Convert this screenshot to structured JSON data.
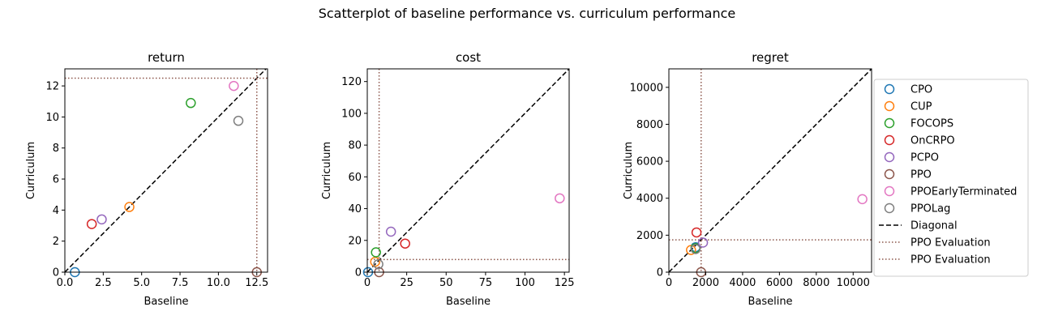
{
  "figure": {
    "suptitle": "Scatterplot of baseline performance vs. curriculum performance"
  },
  "legend": {
    "placement": "right",
    "entries": [
      {
        "label": "CPO",
        "kind": "marker",
        "color": "#1f77b4"
      },
      {
        "label": "CUP",
        "kind": "marker",
        "color": "#ff7f0e"
      },
      {
        "label": "FOCOPS",
        "kind": "marker",
        "color": "#2ca02c"
      },
      {
        "label": "OnCRPO",
        "kind": "marker",
        "color": "#d62728"
      },
      {
        "label": "PCPO",
        "kind": "marker",
        "color": "#9467bd"
      },
      {
        "label": "PPO",
        "kind": "marker",
        "color": "#8c564b"
      },
      {
        "label": "PPOEarlyTerminated",
        "kind": "marker",
        "color": "#e377c2"
      },
      {
        "label": "PPOLag",
        "kind": "marker",
        "color": "#7f7f7f"
      },
      {
        "label": "Diagonal",
        "kind": "dashed",
        "color": "#000000"
      },
      {
        "label": "PPO Evaluation",
        "kind": "dotted",
        "color": "#8c564b"
      },
      {
        "label": "PPO Evaluation",
        "kind": "dotted",
        "color": "#8c564b"
      }
    ]
  },
  "chart_data": [
    {
      "type": "scatter",
      "title": "return",
      "xlabel": "Baseline",
      "ylabel": "Curriculum",
      "xlim": [
        0,
        13.2
      ],
      "ylim": [
        0,
        13.1
      ],
      "xticks": [
        0,
        2.5,
        5,
        7.5,
        10,
        12.5
      ],
      "xtick_labels": [
        "0.0",
        "2.5",
        "5.0",
        "7.5",
        "10.0",
        "12.5"
      ],
      "yticks": [
        0,
        2,
        4,
        6,
        8,
        10,
        12
      ],
      "ytick_labels": [
        "0",
        "2",
        "4",
        "6",
        "8",
        "10",
        "12"
      ],
      "grid": false,
      "diagonal": true,
      "ppo_eval": {
        "x": 12.5,
        "y": 12.5
      },
      "series": [
        {
          "name": "CPO",
          "x": 0.65,
          "y": 0.0
        },
        {
          "name": "CUP",
          "x": 4.2,
          "y": 4.2
        },
        {
          "name": "FOCOPS",
          "x": 8.2,
          "y": 10.9
        },
        {
          "name": "OnCRPO",
          "x": 1.75,
          "y": 3.1
        },
        {
          "name": "PCPO",
          "x": 2.4,
          "y": 3.4
        },
        {
          "name": "PPO",
          "x": 12.5,
          "y": 0.0
        },
        {
          "name": "PPOEarlyTerminated",
          "x": 11.0,
          "y": 12.0
        },
        {
          "name": "PPOLag",
          "x": 11.3,
          "y": 9.75
        }
      ]
    },
    {
      "type": "scatter",
      "title": "cost",
      "xlabel": "Baseline",
      "ylabel": "Curriculum",
      "xlim": [
        0,
        128
      ],
      "ylim": [
        0,
        128
      ],
      "xticks": [
        0,
        25,
        50,
        75,
        100,
        125
      ],
      "xtick_labels": [
        "0",
        "25",
        "50",
        "75",
        "100",
        "125"
      ],
      "yticks": [
        0,
        20,
        40,
        60,
        80,
        100,
        120
      ],
      "ytick_labels": [
        "0",
        "20",
        "40",
        "60",
        "80",
        "100",
        "120"
      ],
      "grid": false,
      "diagonal": true,
      "ppo_eval": {
        "x": 7.5,
        "y": 8.0
      },
      "series": [
        {
          "name": "CPO",
          "x": 0.5,
          "y": 0.0
        },
        {
          "name": "CUP",
          "x": 5.0,
          "y": 6.5
        },
        {
          "name": "FOCOPS",
          "x": 5.5,
          "y": 12.5
        },
        {
          "name": "OnCRPO",
          "x": 24.0,
          "y": 18.0
        },
        {
          "name": "PCPO",
          "x": 15.0,
          "y": 25.5
        },
        {
          "name": "PPO",
          "x": 7.5,
          "y": 0.0
        },
        {
          "name": "PPOEarlyTerminated",
          "x": 122.0,
          "y": 46.5
        },
        {
          "name": "PPOLag",
          "x": 7.0,
          "y": 5.0
        }
      ]
    },
    {
      "type": "scatter",
      "title": "regret",
      "xlabel": "Baseline",
      "ylabel": "Curriculum",
      "xlim": [
        0,
        11000
      ],
      "ylim": [
        0,
        11000
      ],
      "xticks": [
        0,
        2000,
        4000,
        6000,
        8000,
        10000
      ],
      "xtick_labels": [
        "0",
        "2000",
        "4000",
        "6000",
        "8000",
        "10000"
      ],
      "yticks": [
        0,
        2000,
        4000,
        6000,
        8000,
        10000
      ],
      "ytick_labels": [
        "0",
        "2000",
        "4000",
        "6000",
        "8000",
        "10000"
      ],
      "grid": false,
      "diagonal": true,
      "ppo_eval": {
        "x": 1750,
        "y": 1750
      },
      "series": [
        {
          "name": "CPO",
          "x": 1450,
          "y": 1350
        },
        {
          "name": "CUP",
          "x": 1200,
          "y": 1200
        },
        {
          "name": "FOCOPS",
          "x": 1450,
          "y": 1300
        },
        {
          "name": "OnCRPO",
          "x": 1500,
          "y": 2150
        },
        {
          "name": "PCPO",
          "x": 1850,
          "y": 1600
        },
        {
          "name": "PPO",
          "x": 1750,
          "y": 0
        },
        {
          "name": "PPOEarlyTerminated",
          "x": 10500,
          "y": 3950
        },
        {
          "name": "PPOLag",
          "x": 1450,
          "y": 1250
        }
      ]
    }
  ]
}
